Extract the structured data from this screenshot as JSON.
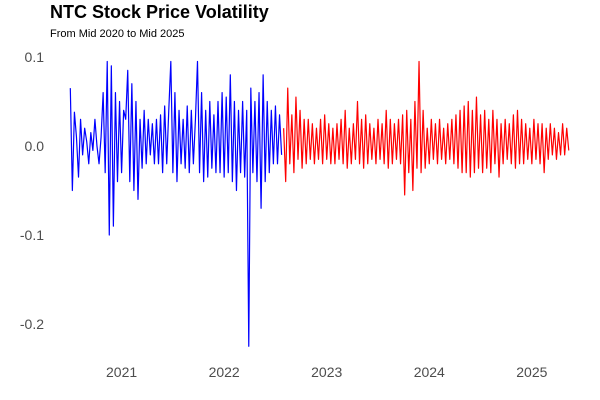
{
  "chart_data": {
    "type": "line",
    "title": "NTC Stock Price Volatility",
    "subtitle": "From Mid 2020 to Mid 2025",
    "xlabel": "",
    "ylabel": "",
    "x_range": [
      "2020-06",
      "2025-05"
    ],
    "ylim": [
      -0.225,
      0.1
    ],
    "grid": false,
    "legend": "none",
    "y_ticks": [
      {
        "value": 0.1,
        "label": "0.1"
      },
      {
        "value": 0.0,
        "label": "0.0"
      },
      {
        "value": -0.1,
        "label": "-0.1"
      },
      {
        "value": -0.2,
        "label": "-0.2"
      }
    ],
    "x_ticks": [
      {
        "value": 2021.0,
        "label": "2021"
      },
      {
        "value": 2022.0,
        "label": "2022"
      },
      {
        "value": 2023.0,
        "label": "2023"
      },
      {
        "value": 2024.0,
        "label": "2024"
      },
      {
        "value": 2025.0,
        "label": "2025"
      }
    ],
    "series": [
      {
        "color": "#0000ff",
        "x": [
          2020.5,
          2020.52,
          2020.54,
          2020.56,
          2020.58,
          2020.6,
          2020.62,
          2020.64,
          2020.66,
          2020.68,
          2020.7,
          2020.72,
          2020.74,
          2020.76,
          2020.78,
          2020.8,
          2020.82,
          2020.84,
          2020.86,
          2020.88,
          2020.9,
          2020.92,
          2020.94,
          2020.96,
          2020.98,
          2021.0,
          2021.02,
          2021.04,
          2021.06,
          2021.08,
          2021.1,
          2021.12,
          2021.14,
          2021.16,
          2021.18,
          2021.2,
          2021.22,
          2021.24,
          2021.26,
          2021.28,
          2021.3,
          2021.32,
          2021.34,
          2021.36,
          2021.38,
          2021.4,
          2021.42,
          2021.44,
          2021.46,
          2021.48,
          2021.5,
          2021.52,
          2021.54,
          2021.56,
          2021.58,
          2021.6,
          2021.62,
          2021.64,
          2021.66,
          2021.68,
          2021.7,
          2021.72,
          2021.74,
          2021.76,
          2021.78,
          2021.8,
          2021.82,
          2021.84,
          2021.86,
          2021.88,
          2021.9,
          2021.92,
          2021.94,
          2021.96,
          2021.98,
          2022.0,
          2022.02,
          2022.04,
          2022.06,
          2022.08,
          2022.1,
          2022.12,
          2022.14,
          2022.16,
          2022.18,
          2022.2,
          2022.22,
          2022.24,
          2022.26,
          2022.28,
          2022.3,
          2022.32,
          2022.34,
          2022.36,
          2022.38,
          2022.4,
          2022.42,
          2022.44,
          2022.46,
          2022.48,
          2022.5,
          2022.52,
          2022.54,
          2022.56
        ],
        "values": [
          0.065,
          -0.05,
          0.038,
          0.01,
          -0.035,
          0.03,
          -0.01,
          0.02,
          0.005,
          -0.02,
          0.015,
          -0.005,
          0.03,
          0.0,
          -0.02,
          0.01,
          0.06,
          -0.03,
          0.095,
          -0.1,
          0.09,
          -0.09,
          0.06,
          -0.04,
          0.05,
          -0.03,
          0.04,
          0.03,
          0.085,
          -0.04,
          0.07,
          -0.05,
          0.05,
          -0.06,
          0.03,
          -0.025,
          0.04,
          -0.02,
          0.03,
          -0.01,
          0.025,
          -0.02,
          0.03,
          -0.02,
          0.035,
          -0.03,
          0.045,
          -0.02,
          0.04,
          0.095,
          -0.03,
          0.06,
          -0.04,
          0.04,
          -0.02,
          0.03,
          -0.025,
          0.045,
          -0.03,
          0.04,
          -0.02,
          0.03,
          0.095,
          -0.03,
          0.06,
          -0.04,
          0.04,
          -0.035,
          0.05,
          -0.025,
          0.035,
          -0.03,
          0.05,
          -0.03,
          0.06,
          -0.035,
          0.055,
          -0.03,
          0.08,
          -0.04,
          0.05,
          -0.05,
          0.04,
          -0.03,
          0.05,
          -0.035,
          0.04,
          -0.225,
          0.065,
          -0.03,
          0.05,
          -0.04,
          0.06,
          -0.07,
          0.08,
          -0.04,
          0.05,
          -0.03,
          0.04,
          -0.02,
          0.045,
          -0.02,
          0.035,
          -0.01
        ]
      },
      {
        "color": "#ff0000",
        "x": [
          2022.58,
          2022.6,
          2022.62,
          2022.64,
          2022.66,
          2022.68,
          2022.7,
          2022.72,
          2022.74,
          2022.76,
          2022.78,
          2022.8,
          2022.82,
          2022.84,
          2022.86,
          2022.88,
          2022.9,
          2022.92,
          2022.94,
          2022.96,
          2022.98,
          2023.0,
          2023.02,
          2023.04,
          2023.06,
          2023.08,
          2023.1,
          2023.12,
          2023.14,
          2023.16,
          2023.18,
          2023.2,
          2023.22,
          2023.24,
          2023.26,
          2023.28,
          2023.3,
          2023.32,
          2023.34,
          2023.36,
          2023.38,
          2023.4,
          2023.42,
          2023.44,
          2023.46,
          2023.48,
          2023.5,
          2023.52,
          2023.54,
          2023.56,
          2023.58,
          2023.6,
          2023.62,
          2023.64,
          2023.66,
          2023.68,
          2023.7,
          2023.72,
          2023.74,
          2023.76,
          2023.78,
          2023.8,
          2023.82,
          2023.84,
          2023.86,
          2023.88,
          2023.9,
          2023.92,
          2023.94,
          2023.96,
          2023.98,
          2024.0,
          2024.02,
          2024.04,
          2024.06,
          2024.08,
          2024.1,
          2024.12,
          2024.14,
          2024.16,
          2024.18,
          2024.2,
          2024.22,
          2024.24,
          2024.26,
          2024.28,
          2024.3,
          2024.32,
          2024.34,
          2024.36,
          2024.38,
          2024.4,
          2024.42,
          2024.44,
          2024.46,
          2024.48,
          2024.5,
          2024.52,
          2024.54,
          2024.56,
          2024.58,
          2024.6,
          2024.62,
          2024.64,
          2024.66,
          2024.68,
          2024.7,
          2024.72,
          2024.74,
          2024.76,
          2024.78,
          2024.8,
          2024.82,
          2024.84,
          2024.86,
          2024.88,
          2024.9,
          2024.92,
          2024.94,
          2024.96,
          2024.98,
          2025.0,
          2025.02,
          2025.04,
          2025.06,
          2025.08,
          2025.1,
          2025.12,
          2025.14,
          2025.16,
          2025.18,
          2025.2,
          2025.22,
          2025.24,
          2025.26,
          2025.28,
          2025.3,
          2025.32,
          2025.34,
          2025.36
        ],
        "values": [
          0.02,
          -0.04,
          0.065,
          -0.02,
          0.035,
          -0.03,
          0.055,
          -0.015,
          0.04,
          -0.025,
          0.03,
          -0.02,
          0.03,
          -0.015,
          0.025,
          -0.02,
          0.02,
          -0.015,
          0.03,
          -0.02,
          0.035,
          -0.015,
          0.025,
          -0.02,
          0.02,
          -0.02,
          0.025,
          -0.015,
          0.03,
          -0.02,
          0.04,
          -0.025,
          0.02,
          -0.02,
          0.025,
          -0.015,
          0.05,
          -0.02,
          0.03,
          -0.025,
          0.035,
          -0.02,
          0.025,
          -0.015,
          0.02,
          -0.02,
          0.03,
          -0.015,
          0.025,
          -0.02,
          0.04,
          -0.025,
          0.03,
          -0.02,
          0.025,
          -0.015,
          0.03,
          -0.02,
          0.035,
          -0.055,
          0.04,
          -0.03,
          0.03,
          -0.05,
          0.05,
          -0.025,
          0.095,
          -0.03,
          0.04,
          -0.025,
          0.02,
          -0.02,
          0.03,
          -0.015,
          0.025,
          -0.02,
          0.03,
          -0.015,
          0.02,
          -0.02,
          0.025,
          -0.015,
          0.03,
          -0.02,
          0.035,
          -0.025,
          0.04,
          -0.03,
          0.045,
          -0.03,
          0.05,
          -0.035,
          0.04,
          -0.03,
          0.055,
          -0.025,
          0.035,
          -0.03,
          0.04,
          -0.025,
          0.03,
          -0.03,
          0.04,
          -0.02,
          0.03,
          -0.035,
          0.025,
          -0.02,
          0.03,
          -0.015,
          0.025,
          -0.02,
          0.035,
          -0.025,
          0.04,
          -0.02,
          0.03,
          -0.02,
          0.025,
          -0.015,
          0.02,
          -0.02,
          0.03,
          -0.015,
          0.025,
          -0.02,
          0.025,
          -0.03,
          0.02,
          -0.015,
          0.025,
          -0.01,
          0.02,
          -0.015,
          0.015,
          -0.01,
          0.025,
          -0.01,
          0.02,
          -0.005
        ]
      }
    ]
  }
}
